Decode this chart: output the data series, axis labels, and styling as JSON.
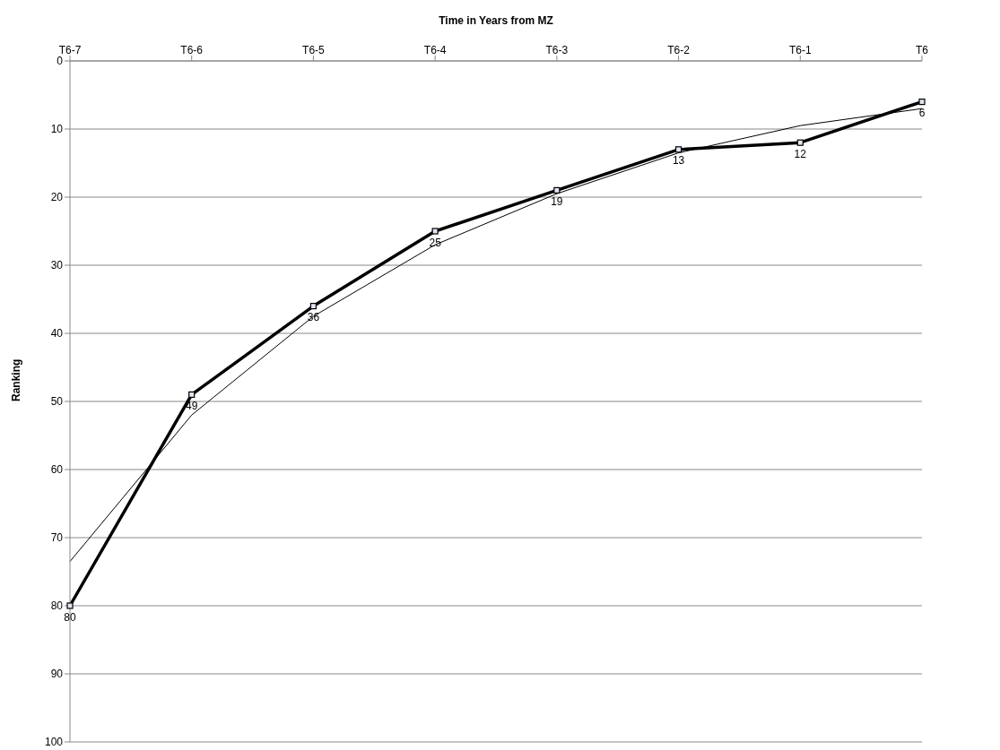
{
  "chart_data": {
    "type": "line",
    "xlabel": "Time in Years from MZ",
    "ylabel": "Ranking",
    "categories": [
      "T6-7",
      "T6-6",
      "T6-5",
      "T6-4",
      "T6-3",
      "T6-2",
      "T6-1",
      "T6"
    ],
    "series": [
      {
        "color": "#000000",
        "values": [
          80,
          49,
          36,
          25,
          19,
          13,
          12,
          6
        ],
        "marker": "square",
        "data_labels": true
      },
      {
        "color": "#000000",
        "values": [
          73.5,
          52,
          37.5,
          27,
          19.5,
          13.5,
          9.5,
          7
        ],
        "marker": "none"
      }
    ],
    "ylim": [
      100,
      0
    ],
    "yticks": [
      0,
      10,
      20,
      30,
      40,
      50,
      60,
      70,
      80,
      90,
      100
    ],
    "grid": "y",
    "line_style": "solid"
  }
}
